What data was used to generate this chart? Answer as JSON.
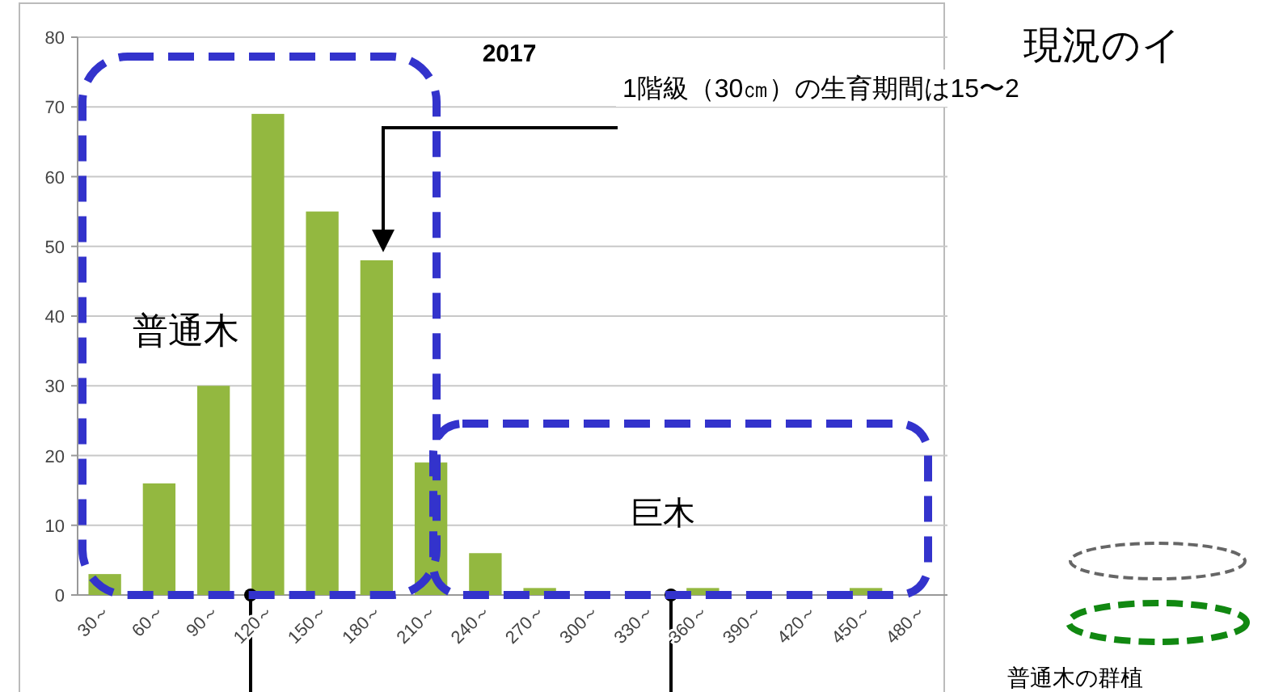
{
  "chart_data": {
    "type": "bar",
    "title": "2017",
    "categories": [
      "30～",
      "60～",
      "90～",
      "120～",
      "150～",
      "180～",
      "210～",
      "240～",
      "270～",
      "300～",
      "330～",
      "360～",
      "390～",
      "420～",
      "450～",
      "480～"
    ],
    "values": [
      3,
      16,
      30,
      69,
      55,
      48,
      19,
      6,
      1,
      0,
      0,
      1,
      0,
      0,
      1,
      0
    ],
    "color": "#93b840",
    "ylim": [
      0,
      80
    ],
    "yticks": [
      0,
      10,
      20,
      30,
      40,
      50,
      60,
      70,
      80
    ],
    "grid": "y",
    "annotations": [
      "普通木",
      "巨木",
      "1階級（30㎝）の生育期間は15〜2",
      "現況のイ",
      "普通木の群植"
    ]
  }
}
